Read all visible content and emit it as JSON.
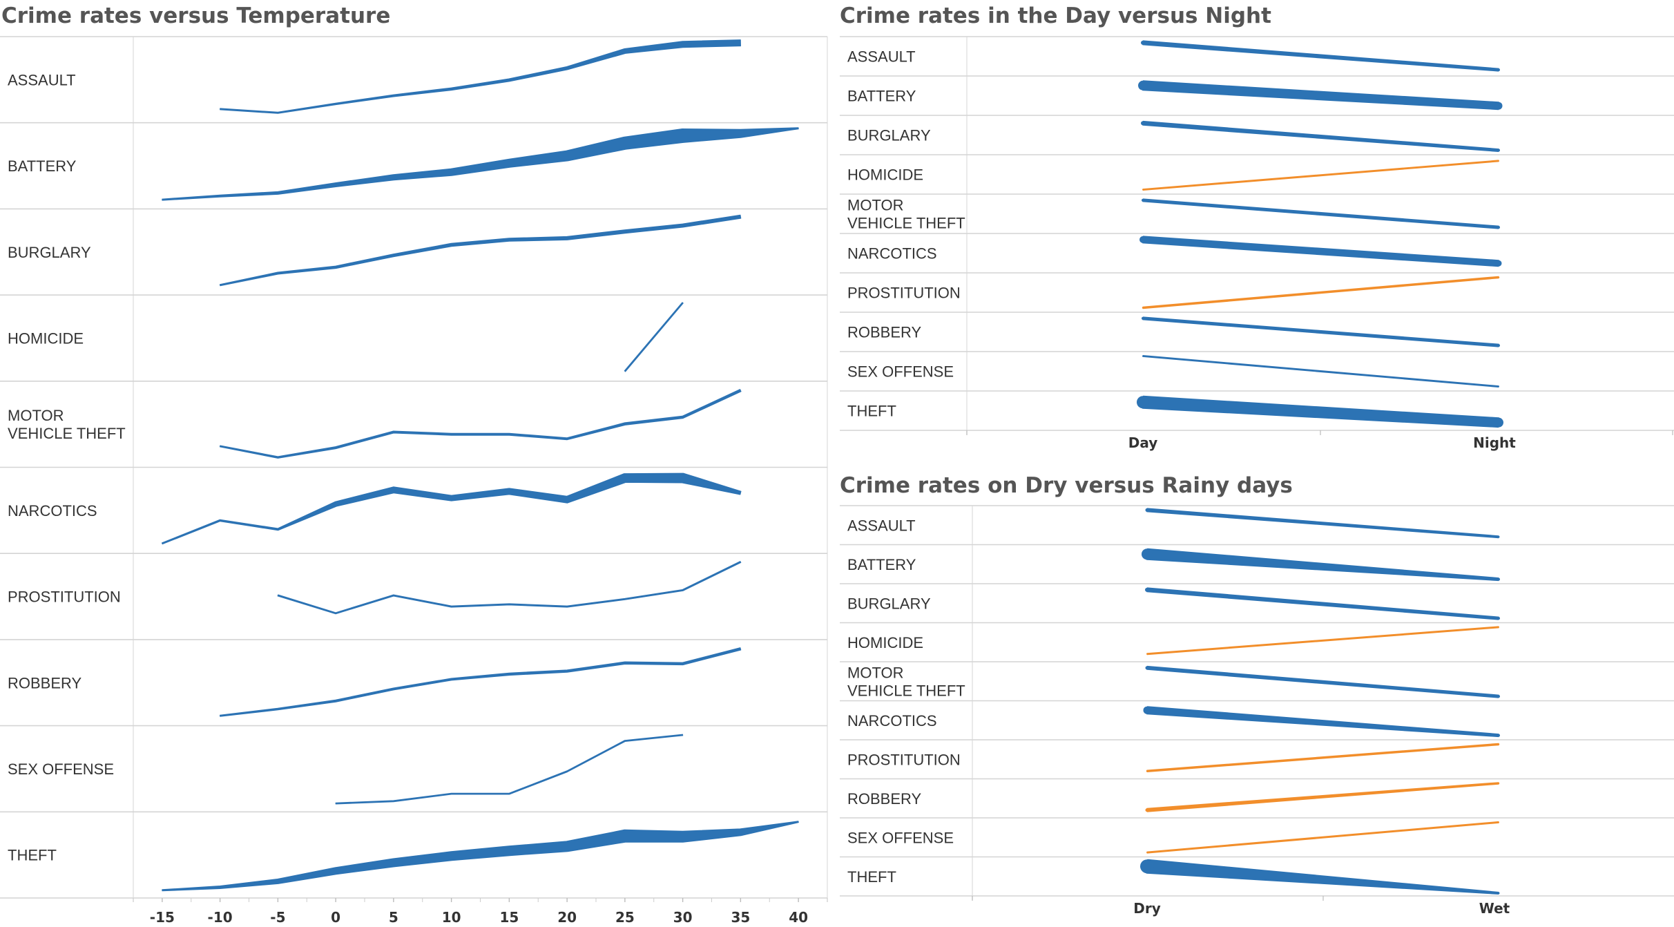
{
  "colors": {
    "up": "#f28e2b",
    "down": "#2c73b4",
    "text": "#333333",
    "title": "#555555"
  },
  "crimes": [
    "ASSAULT",
    "BATTERY",
    "BURGLARY",
    "HOMICIDE",
    "MOTOR VEHICLE THEFT",
    "NARCOTICS",
    "PROSTITUTION",
    "ROBBERY",
    "SEX OFFENSE",
    "THEFT"
  ],
  "chart_data": [
    {
      "type": "line",
      "title": "Crime rates versus Temperature",
      "x": [
        -15,
        -10,
        -5,
        0,
        5,
        10,
        15,
        20,
        25,
        30,
        35,
        40
      ],
      "xlim": [
        -17.5,
        42.5
      ],
      "series": [
        {
          "name": "ASSAULT",
          "values": [
            null,
            0.1,
            0.05,
            0.17,
            0.28,
            0.37,
            0.49,
            0.65,
            0.88,
            0.97,
            0.99,
            null
          ],
          "widths": [
            null,
            2,
            2,
            2.5,
            3,
            3.5,
            4,
            4.5,
            7,
            9,
            9,
            null
          ]
        },
        {
          "name": "BATTERY",
          "values": [
            0.04,
            0.09,
            0.13,
            0.24,
            0.34,
            0.41,
            0.53,
            0.63,
            0.8,
            0.9,
            0.93,
            1.0
          ],
          "widths": [
            2,
            3,
            4,
            6,
            8,
            10,
            12,
            15,
            18,
            20,
            12,
            2
          ]
        },
        {
          "name": "BURGLARY",
          "values": [
            null,
            0.05,
            0.21,
            0.29,
            0.45,
            0.59,
            0.66,
            0.68,
            0.77,
            0.85,
            0.97,
            null
          ],
          "widths": [
            null,
            2,
            3,
            3.5,
            4,
            4.5,
            4.5,
            5,
            5,
            5,
            5,
            null
          ]
        },
        {
          "name": "HOMICIDE",
          "values": [
            null,
            null,
            null,
            null,
            null,
            null,
            null,
            null,
            0.05,
            0.97,
            null,
            null
          ],
          "widths": [
            null,
            null,
            null,
            null,
            null,
            null,
            null,
            null,
            1.8,
            1.8,
            null,
            null
          ]
        },
        {
          "name": "MOTOR VEHICLE THEFT",
          "values": [
            null,
            0.2,
            0.05,
            0.18,
            0.39,
            0.36,
            0.36,
            0.3,
            0.5,
            0.59,
            0.95,
            null
          ],
          "widths": [
            null,
            2,
            2.5,
            3,
            3,
            3,
            3,
            3,
            3.5,
            3.5,
            3.5,
            null
          ]
        },
        {
          "name": "NARCOTICS",
          "values": [
            0.05,
            0.36,
            0.24,
            0.58,
            0.77,
            0.66,
            0.75,
            0.64,
            0.93,
            0.93,
            0.73,
            null
          ],
          "widths": [
            2,
            2.5,
            3,
            7,
            9,
            8,
            9,
            10,
            13,
            14,
            5,
            null
          ]
        },
        {
          "name": "PROSTITUTION",
          "values": [
            null,
            null,
            0.51,
            0.27,
            0.51,
            0.36,
            0.39,
            0.36,
            0.46,
            0.58,
            0.96,
            null
          ],
          "widths": [
            null,
            null,
            2,
            2,
            2,
            2,
            2,
            2,
            2,
            2,
            2,
            null
          ]
        },
        {
          "name": "ROBBERY",
          "values": [
            null,
            0.05,
            0.14,
            0.25,
            0.41,
            0.54,
            0.61,
            0.65,
            0.76,
            0.75,
            0.95,
            null
          ],
          "widths": [
            null,
            2,
            2.5,
            3,
            3,
            3,
            3.5,
            3.5,
            3.5,
            3.5,
            3.5,
            null
          ]
        },
        {
          "name": "SEX OFFENSE",
          "values": [
            null,
            null,
            null,
            0.03,
            0.06,
            0.16,
            0.16,
            0.46,
            0.87,
            0.95,
            null,
            null
          ],
          "widths": [
            null,
            null,
            null,
            1.8,
            1.8,
            1.8,
            1.8,
            1.8,
            1.8,
            1.8,
            null,
            null
          ]
        },
        {
          "name": "THEFT",
          "values": [
            0.02,
            0.06,
            0.14,
            0.28,
            0.39,
            0.48,
            0.55,
            0.61,
            0.75,
            0.74,
            0.8,
            0.94
          ],
          "widths": [
            2,
            4,
            7,
            10,
            12,
            13,
            14,
            15,
            18,
            16,
            10,
            2
          ]
        }
      ]
    },
    {
      "type": "line",
      "title": "Crime rates in the Day versus Night",
      "categories": [
        "Day",
        "Night"
      ],
      "series": [
        {
          "name": "ASSAULT",
          "values": [
            0.9,
            0.1
          ],
          "widths": [
            6,
            4
          ]
        },
        {
          "name": "BATTERY",
          "values": [
            0.8,
            0.2
          ],
          "widths": [
            14,
            11
          ]
        },
        {
          "name": "BURGLARY",
          "values": [
            0.85,
            0.05
          ],
          "widths": [
            6,
            4
          ]
        },
        {
          "name": "HOMICIDE",
          "values": [
            0.05,
            0.9
          ],
          "widths": [
            2,
            2
          ]
        },
        {
          "name": "MOTOR VEHICLE THEFT",
          "values": [
            0.9,
            0.1
          ],
          "widths": [
            4,
            4
          ]
        },
        {
          "name": "NARCOTICS",
          "values": [
            0.9,
            0.2
          ],
          "widths": [
            10,
            9
          ]
        },
        {
          "name": "PROSTITUTION",
          "values": [
            0.05,
            0.95
          ],
          "widths": [
            2.5,
            2.5
          ]
        },
        {
          "name": "ROBBERY",
          "values": [
            0.9,
            0.1
          ],
          "widths": [
            4,
            4
          ]
        },
        {
          "name": "SEX OFFENSE",
          "values": [
            0.95,
            0.05
          ],
          "widths": [
            2,
            2
          ]
        },
        {
          "name": "THEFT",
          "values": [
            0.75,
            0.15
          ],
          "widths": [
            18,
            14
          ]
        }
      ]
    },
    {
      "type": "line",
      "title": "Crime rates on Dry versus Rainy days",
      "categories": [
        "Dry",
        "Wet"
      ],
      "series": [
        {
          "name": "ASSAULT",
          "values": [
            0.95,
            0.15
          ],
          "widths": [
            5,
            3
          ]
        },
        {
          "name": "BATTERY",
          "values": [
            0.8,
            0.05
          ],
          "widths": [
            16,
            4
          ]
        },
        {
          "name": "BURGLARY",
          "values": [
            0.9,
            0.05
          ],
          "widths": [
            6,
            4
          ]
        },
        {
          "name": "HOMICIDE",
          "values": [
            0.15,
            0.95
          ],
          "widths": [
            2,
            2
          ]
        },
        {
          "name": "MOTOR VEHICLE THEFT",
          "values": [
            0.9,
            0.05
          ],
          "widths": [
            5,
            4
          ]
        },
        {
          "name": "NARCOTICS",
          "values": [
            0.8,
            0.05
          ],
          "widths": [
            11,
            4
          ]
        },
        {
          "name": "PROSTITUTION",
          "values": [
            0.15,
            0.95
          ],
          "widths": [
            2.5,
            2.5
          ]
        },
        {
          "name": "ROBBERY",
          "values": [
            0.15,
            0.95
          ],
          "widths": [
            5,
            2.5
          ]
        },
        {
          "name": "SEX OFFENSE",
          "values": [
            0.05,
            0.95
          ],
          "widths": [
            2,
            2
          ]
        },
        {
          "name": "THEFT",
          "values": [
            0.8,
            0.0
          ],
          "widths": [
            20,
            3
          ]
        }
      ]
    }
  ]
}
